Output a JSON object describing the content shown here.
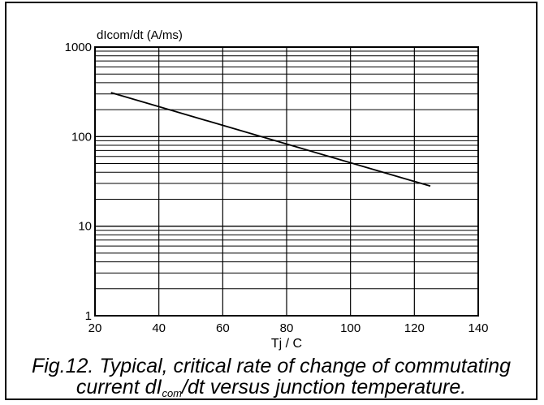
{
  "chart_data": {
    "type": "line",
    "ylabel": "dIcom/dt (A/ms)",
    "xlabel": "Tj / C",
    "x_ticks": [
      20,
      40,
      60,
      80,
      100,
      120,
      140
    ],
    "y_ticks": [
      1,
      10,
      100,
      1000
    ],
    "xlim": [
      20,
      140
    ],
    "ylim": [
      1,
      1000
    ],
    "y_scale": "log",
    "grid": true,
    "series": [
      {
        "x": [
          25,
          125
        ],
        "y": [
          310,
          28
        ]
      }
    ]
  },
  "caption": {
    "line1": "Fig.12.  Typical, critical rate of change of commutating",
    "line2_part1": "current dI",
    "line2_sub": "com",
    "line2_part2": "/dt versus junction temperature."
  },
  "colors": {
    "line": "#000000",
    "grid": "#000000",
    "background": "#ffffff"
  }
}
